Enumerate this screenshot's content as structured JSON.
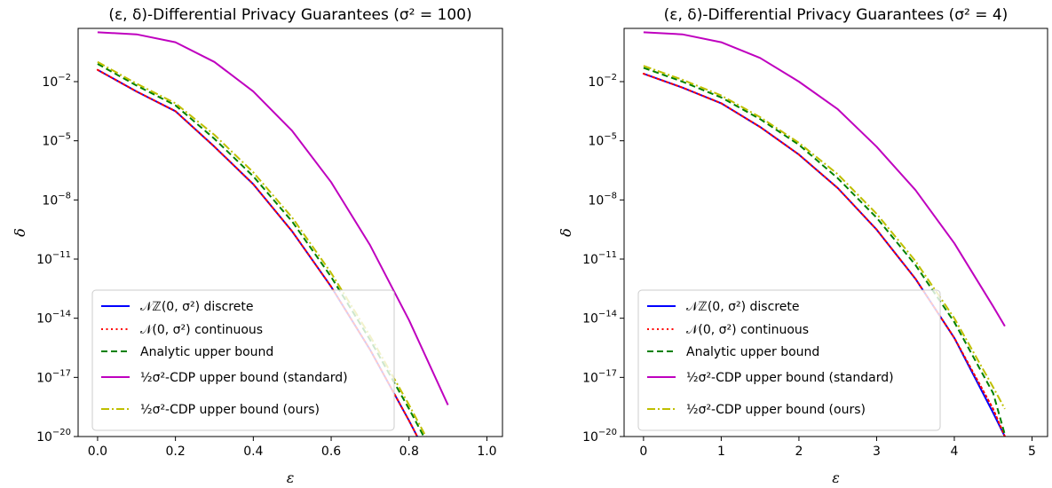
{
  "chart_data": [
    {
      "type": "line",
      "title": "(ε, δ)-Differential Privacy Guarantees (σ² = 100)",
      "xlabel": "ε",
      "ylabel": "δ",
      "y_scale": "log",
      "xlim": [
        -0.05,
        1.04
      ],
      "ylim_exp": [
        -20,
        0.7
      ],
      "xticks": [
        0.0,
        0.2,
        0.4,
        0.6,
        0.8,
        1.0
      ],
      "xtick_labels": [
        "0.0",
        "0.2",
        "0.4",
        "0.6",
        "0.8",
        "1.0"
      ],
      "yticks_exp": [
        -20,
        -17,
        -14,
        -11,
        -8,
        -5,
        -2
      ],
      "legend": {
        "loc": "lower-left"
      },
      "x": [
        0.0,
        0.1,
        0.2,
        0.3,
        0.4,
        0.5,
        0.6,
        0.7,
        0.8,
        0.9
      ],
      "series": [
        {
          "name": "𝒩ℤ(0, σ²) discrete",
          "color": "#0000ff",
          "style": "solid",
          "log10_y": [
            -1.4,
            -2.5,
            -3.5,
            -5.3,
            -7.2,
            -9.6,
            -12.4,
            -15.6,
            -19.2,
            -23.0
          ]
        },
        {
          "name": "𝒩(0, σ²) continuous",
          "color": "#ff0000",
          "style": "dotted",
          "log10_y": [
            -1.4,
            -2.5,
            -3.5,
            -5.3,
            -7.2,
            -9.6,
            -12.4,
            -15.6,
            -19.2,
            -23.0
          ]
        },
        {
          "name": "Analytic upper bound",
          "color": "#008000",
          "style": "dashed",
          "log10_y": [
            -1.1,
            -2.2,
            -3.2,
            -4.9,
            -6.8,
            -9.1,
            -11.9,
            -15.1,
            -18.6,
            -22.3
          ]
        },
        {
          "name": "½σ²-CDP upper bound (standard)",
          "color": "#bf00bf",
          "style": "solid",
          "log10_y": [
            0.5,
            0.4,
            0.0,
            -1.0,
            -2.5,
            -4.5,
            -7.1,
            -10.3,
            -14.1,
            -18.4
          ]
        },
        {
          "name": "½σ²-CDP upper bound (ours)",
          "color": "#bfbf00",
          "style": "dashdot",
          "log10_y": [
            -1.0,
            -2.1,
            -3.1,
            -4.7,
            -6.6,
            -8.9,
            -11.7,
            -14.9,
            -18.4,
            -22.1
          ]
        }
      ]
    },
    {
      "type": "line",
      "title": "(ε, δ)-Differential Privacy Guarantees (σ² = 4)",
      "xlabel": "ε",
      "ylabel": "δ",
      "y_scale": "log",
      "xlim": [
        -0.25,
        5.2
      ],
      "ylim_exp": [
        -20,
        0.7
      ],
      "xticks": [
        0,
        1,
        2,
        3,
        4,
        5
      ],
      "xtick_labels": [
        "0",
        "1",
        "2",
        "3",
        "4",
        "5"
      ],
      "yticks_exp": [
        -20,
        -17,
        -14,
        -11,
        -8,
        -5,
        -2
      ],
      "legend": {
        "loc": "lower-left"
      },
      "x": [
        0,
        0.5,
        1.0,
        1.5,
        2.0,
        2.5,
        3.0,
        3.5,
        4.0,
        4.5,
        4.65
      ],
      "series": [
        {
          "name": "𝒩ℤ(0, σ²) discrete",
          "color": "#0000ff",
          "style": "solid",
          "log10_y": [
            -1.6,
            -2.3,
            -3.1,
            -4.3,
            -5.7,
            -7.4,
            -9.5,
            -12.0,
            -15.0,
            -18.8,
            -20.0
          ]
        },
        {
          "name": "𝒩(0, σ²) continuous",
          "color": "#ff0000",
          "style": "dotted",
          "log10_y": [
            -1.6,
            -2.3,
            -3.1,
            -4.3,
            -5.7,
            -7.4,
            -9.5,
            -12.0,
            -15.0,
            -18.6,
            -20.0
          ]
        },
        {
          "name": "Analytic upper bound",
          "color": "#008000",
          "style": "dashed",
          "log10_y": [
            -1.3,
            -2.0,
            -2.8,
            -3.9,
            -5.2,
            -6.9,
            -8.9,
            -11.3,
            -14.2,
            -17.8,
            -19.9
          ]
        },
        {
          "name": "½σ²-CDP upper bound (standard)",
          "color": "#bf00bf",
          "style": "solid",
          "log10_y": [
            0.5,
            0.4,
            0.0,
            -0.8,
            -2.0,
            -3.4,
            -5.3,
            -7.5,
            -10.2,
            -13.4,
            -14.4
          ]
        },
        {
          "name": "½σ²-CDP upper bound (ours)",
          "color": "#bfbf00",
          "style": "dashdot",
          "log10_y": [
            -1.2,
            -1.9,
            -2.7,
            -3.8,
            -5.1,
            -6.7,
            -8.7,
            -11.1,
            -14.0,
            -17.5,
            -18.6
          ]
        }
      ]
    }
  ]
}
